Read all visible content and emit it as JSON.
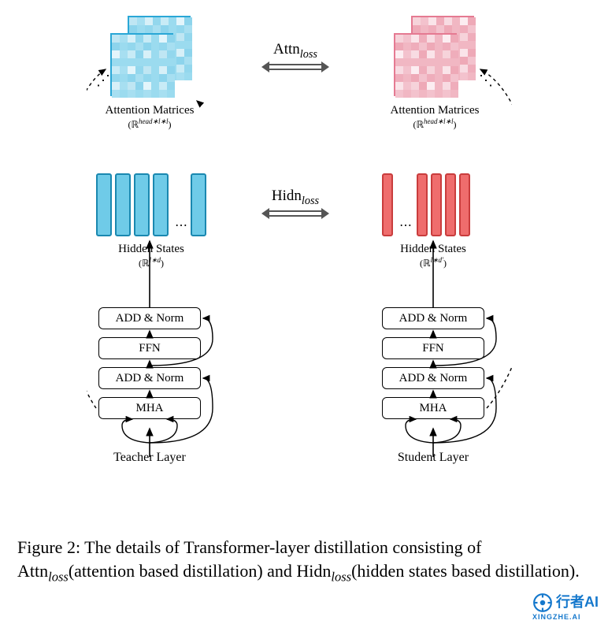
{
  "figure": {
    "caption_prefix": "Figure 2:",
    "caption_body": "The details of Transformer-layer distillation consisting of Attn",
    "caption_mid1": "(attention based distillation) and Hidn",
    "caption_mid2": "(hidden states based distillation).",
    "loss_sub": "loss"
  },
  "loss": {
    "attn_label": "Attn",
    "hidn_label": "Hidn",
    "sub": "loss"
  },
  "attn": {
    "title": "Attention Matrices",
    "dim": "head∗l∗l",
    "teacher_color_border": "#2aa7d6",
    "teacher_cells": [
      "#bfe6f3",
      "#9bdbef",
      "#d7f0f8",
      "#8dd4ec",
      "#c8ebf6",
      "#a7dff1",
      "#e3f5fb",
      "#93d7ed"
    ],
    "student_color_border": "#e57a92",
    "student_cells": [
      "#f6d3da",
      "#f1b7c3",
      "#fae4e9",
      "#eea9b7",
      "#f8dbe2",
      "#f3c2cd",
      "#fcedf1",
      "#efadbb"
    ]
  },
  "hidden": {
    "title": "Hidden States",
    "teacher_dim": "l∗d",
    "student_dim": "l∗d′",
    "teacher_fill": "#6fcbe8",
    "teacher_border": "#1a88b0",
    "student_fill": "#ef6d6d",
    "student_border": "#c93d3d"
  },
  "layer": {
    "boxes": [
      "ADD & Norm",
      "FFN",
      "ADD & Norm",
      "MHA"
    ],
    "teacher_label": "Teacher Layer",
    "student_label": "Student Layer"
  },
  "watermark": {
    "text": "行者AI",
    "sub": "XINGZHE.AI"
  },
  "colors": {
    "arrow": "#000000",
    "dashed": "#000000",
    "loss_arrow": "#777777"
  }
}
